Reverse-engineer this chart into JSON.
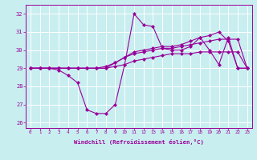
{
  "background_color": "#c8eef0",
  "grid_color": "#ffffff",
  "line_color": "#990099",
  "xlabel": "Windchill (Refroidissement éolien,°C)",
  "ylabel_ticks": [
    26,
    27,
    28,
    29,
    30,
    31,
    32
  ],
  "xlim": [
    -0.5,
    23.5
  ],
  "ylim": [
    25.7,
    32.5
  ],
  "x": [
    0,
    1,
    2,
    3,
    4,
    5,
    6,
    7,
    8,
    9,
    10,
    11,
    12,
    13,
    14,
    15,
    16,
    17,
    18,
    19,
    20,
    21,
    22,
    23
  ],
  "line1": [
    29.0,
    29.0,
    29.0,
    28.9,
    28.6,
    28.2,
    26.7,
    26.5,
    26.5,
    27.0,
    29.2,
    32.0,
    31.4,
    31.3,
    30.1,
    30.0,
    30.0,
    30.2,
    30.7,
    30.0,
    29.2,
    30.7,
    29.0,
    29.0
  ],
  "line2": [
    29.0,
    29.0,
    29.0,
    29.0,
    29.0,
    29.0,
    29.0,
    29.0,
    29.0,
    29.3,
    29.6,
    29.9,
    30.0,
    30.1,
    30.2,
    30.2,
    30.3,
    30.5,
    30.7,
    30.8,
    31.0,
    30.5,
    29.0,
    29.0
  ],
  "line3": [
    29.0,
    29.0,
    29.0,
    29.0,
    29.0,
    29.0,
    29.0,
    29.0,
    29.1,
    29.3,
    29.6,
    29.8,
    29.9,
    30.0,
    30.1,
    30.1,
    30.2,
    30.3,
    30.4,
    30.5,
    30.6,
    30.6,
    30.6,
    29.0
  ],
  "line4": [
    29.0,
    29.0,
    29.0,
    29.0,
    29.0,
    29.0,
    29.0,
    29.0,
    29.0,
    29.1,
    29.2,
    29.4,
    29.5,
    29.6,
    29.7,
    29.8,
    29.8,
    29.8,
    29.9,
    29.9,
    29.9,
    29.9,
    29.9,
    29.0
  ]
}
